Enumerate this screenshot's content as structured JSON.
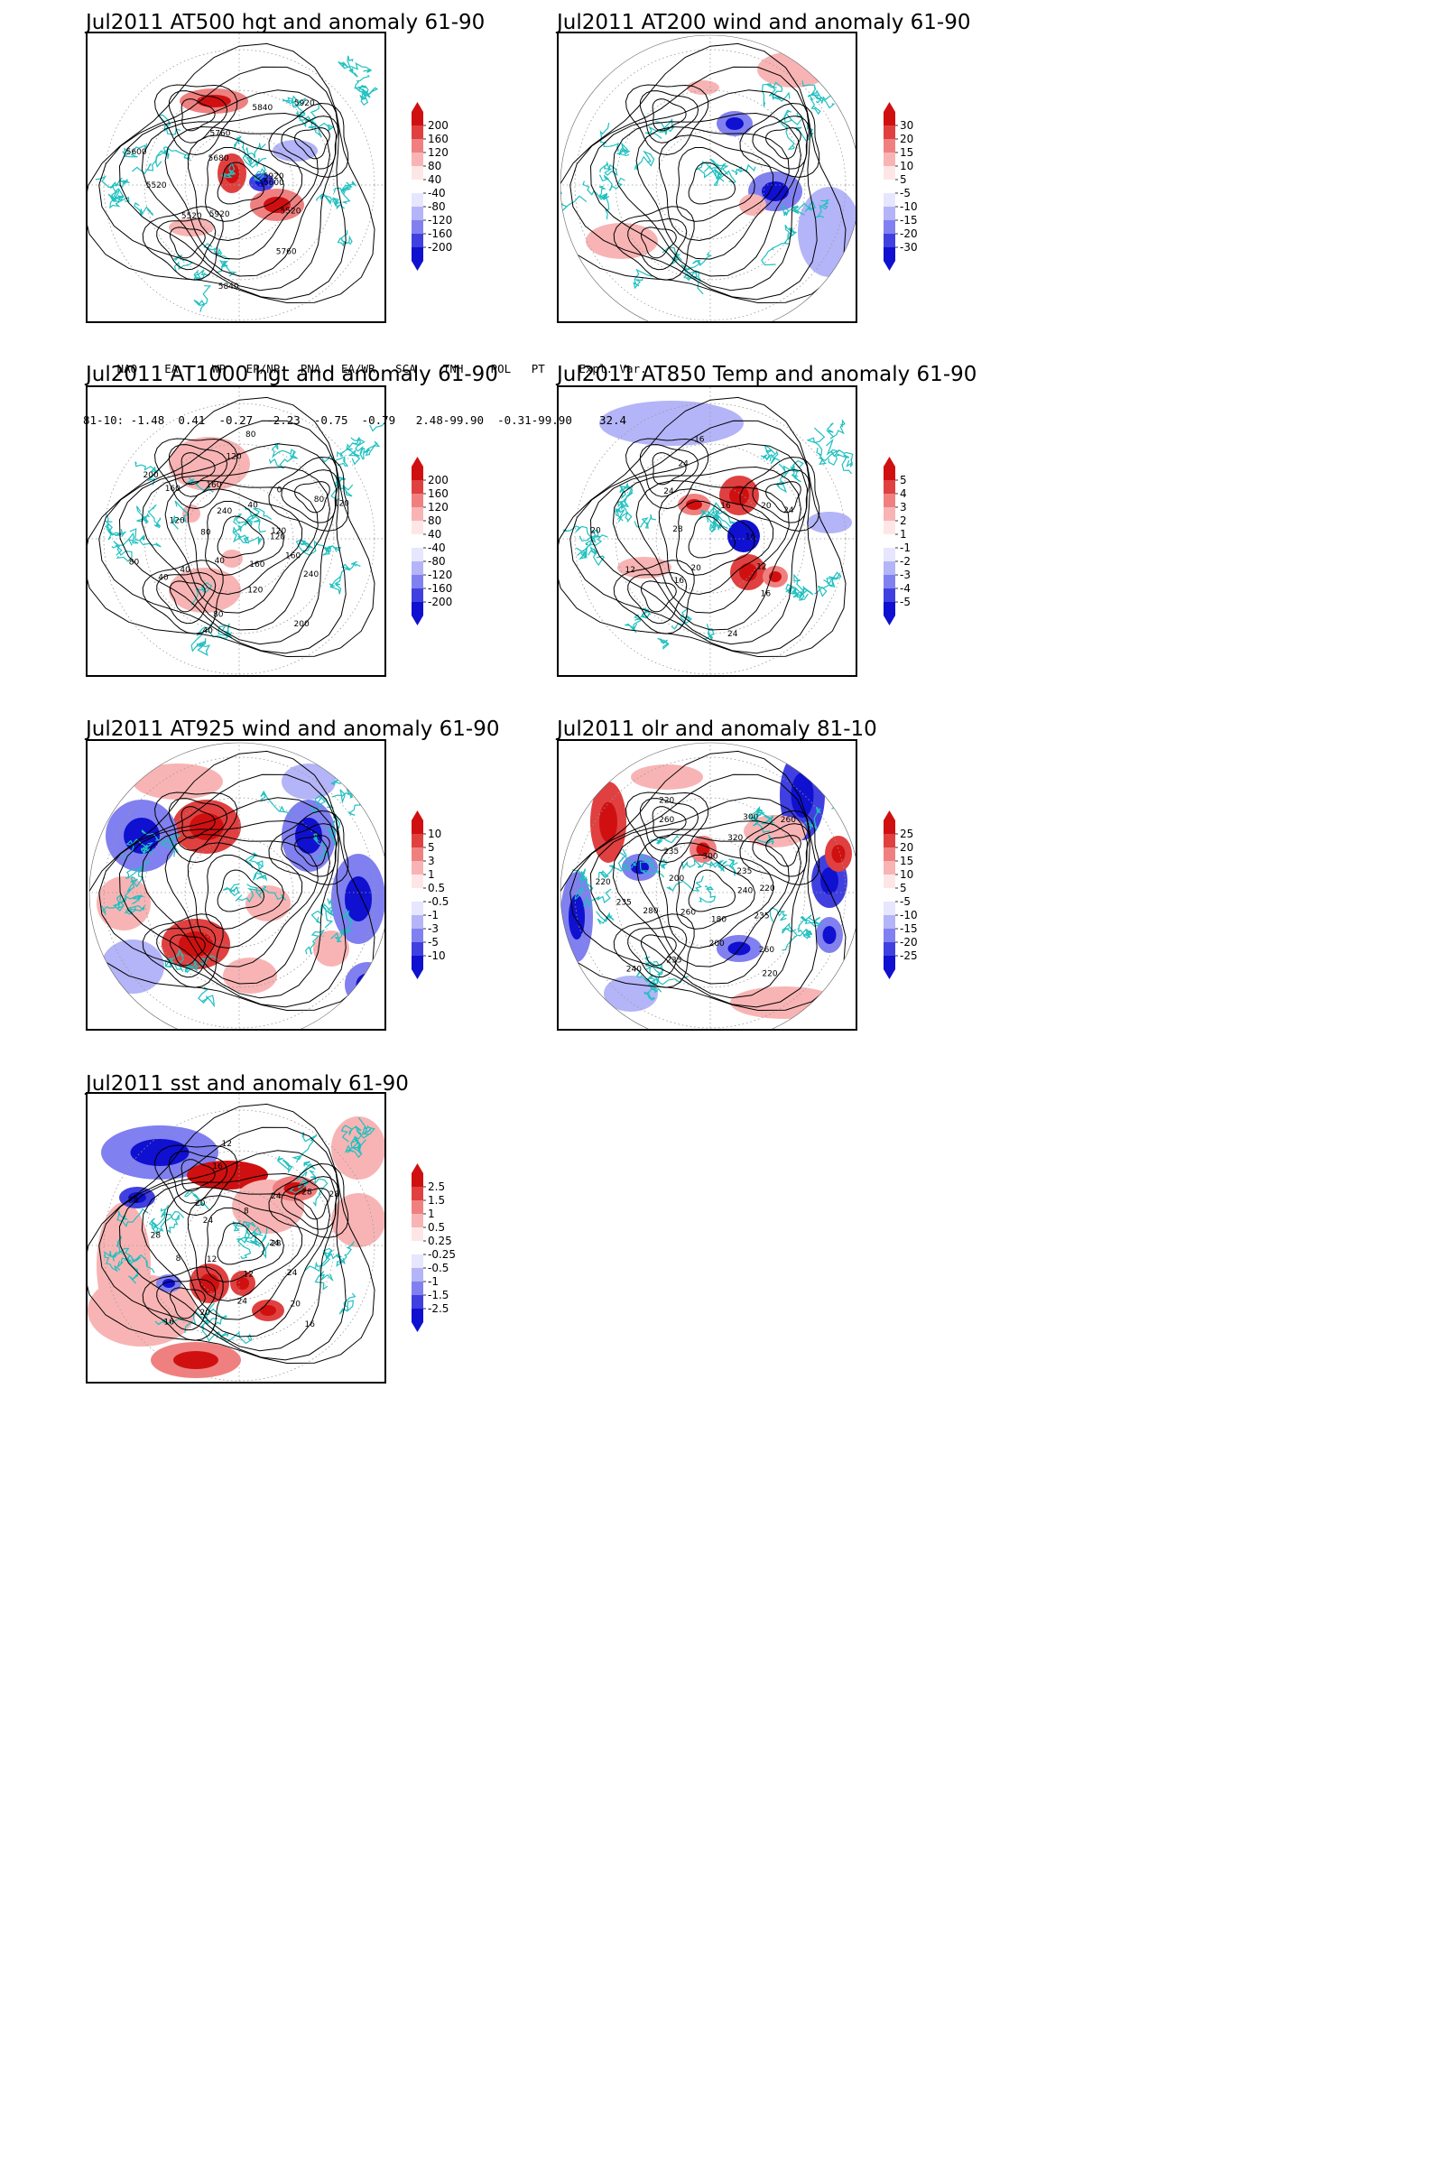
{
  "panels": [
    {
      "id": "p1",
      "title": "Jul2011 AT500 hgt and anomaly 61-90",
      "labels": [
        "5600",
        "5520",
        "5760",
        "5840",
        "5920",
        "5520",
        "5520",
        "5600",
        "5680",
        "5760",
        "5840",
        "5920",
        "5920"
      ],
      "colorbar": {
        "levels": [
          "200",
          "160",
          "120",
          "80",
          "40",
          "-40",
          "-80",
          "-120",
          "-160",
          "-200"
        ]
      }
    },
    {
      "id": "p2",
      "title": "Jul2011 AT200 wind and anomaly 61-90",
      "labels": [],
      "colorbar": {
        "levels": [
          "30",
          "20",
          "15",
          "10",
          "5",
          "-5",
          "-10",
          "-15",
          "-20",
          "-30"
        ]
      }
    },
    {
      "id": "p3",
      "title": "Jul2011 AT1000 hgt and anomaly 61-90",
      "labels": [
        "120",
        "160",
        "240",
        "200",
        "160",
        "120",
        "80",
        "40",
        "40",
        "40",
        "40",
        "80",
        "80",
        "120",
        "160",
        "200",
        "240",
        "160",
        "120",
        "80",
        "40",
        "0",
        "80",
        "120",
        "120"
      ],
      "colorbar": {
        "levels": [
          "200",
          "160",
          "120",
          "80",
          "40",
          "-40",
          "-80",
          "-120",
          "-160",
          "-200"
        ]
      }
    },
    {
      "id": "p4",
      "title": "Jul2011 AT850 Temp and anomaly 61-90",
      "labels": [
        "16",
        "12",
        "16",
        "24",
        "20",
        "16",
        "12",
        "20",
        "28",
        "24",
        "24",
        "16",
        "16",
        "20",
        "24"
      ],
      "colorbar": {
        "levels": [
          "5",
          "4",
          "3",
          "2",
          "1",
          "-1",
          "-2",
          "-3",
          "-4",
          "-5"
        ]
      }
    },
    {
      "id": "p5",
      "title": "Jul2011 AT925 wind and anomaly 61-90",
      "labels": [],
      "colorbar": {
        "levels": [
          "10",
          "5",
          "3",
          "1",
          "0.5",
          "-0.5",
          "-1",
          "-3",
          "-5",
          "-10"
        ]
      }
    },
    {
      "id": "p6",
      "title": "Jul2011 olr and anomaly 81-10",
      "labels": [
        "240",
        "235",
        "260",
        "220",
        "180",
        "200",
        "235",
        "240",
        "260",
        "280",
        "235",
        "220",
        "200",
        "235",
        "260",
        "220",
        "300",
        "320",
        "300",
        "260",
        "235",
        "220"
      ],
      "colorbar": {
        "levels": [
          "25",
          "20",
          "15",
          "10",
          "5",
          "-5",
          "-10",
          "-15",
          "-20",
          "-25"
        ]
      }
    },
    {
      "id": "p7",
      "title": "Jul2011 sst and anomaly 61-90",
      "labels": [
        "28",
        "24",
        "20",
        "16",
        "12",
        "24",
        "20",
        "16",
        "12",
        "8",
        "28",
        "28",
        "24",
        "20",
        "16",
        "12",
        "8",
        "24",
        "28",
        "28",
        "24"
      ],
      "colorbar": {
        "levels": [
          "2.5",
          "1.5",
          "1",
          "0.5",
          "0.25",
          "-0.25",
          "-0.5",
          "-1",
          "-1.5",
          "-2.5"
        ]
      }
    }
  ],
  "indices": {
    "header": "     NAO    EA     WP   EP/NP   PNA   EA/WR   SCA    TNH    POL   PT     Expl. Var.",
    "row": "81-10: -1.48  0.41  -0.27  -2.23  -0.75  -0.79   2.48-99.90  -0.31-99.90    32.4"
  },
  "colors": {
    "coast": "#20c0c0",
    "red": [
      "#ffffff",
      "#ffe6e6",
      "#f8b4b4",
      "#f08080",
      "#e04040",
      "#d01010"
    ],
    "blue": [
      "#ffffff",
      "#e6e6ff",
      "#b4b4f8",
      "#8080f0",
      "#4040e0",
      "#1010d0"
    ]
  }
}
